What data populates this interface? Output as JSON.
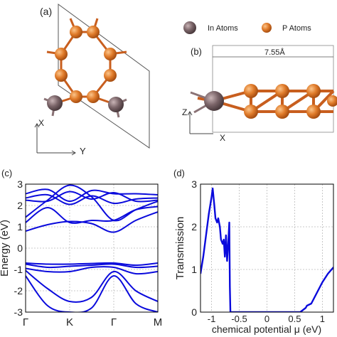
{
  "panel_labels": {
    "a": "(a)",
    "b": "(b)",
    "c": "(c)",
    "d": "(d)"
  },
  "legend": {
    "in_atoms": "In Atoms",
    "p_atoms": "P Atoms"
  },
  "colors": {
    "in_atom": "#7a6468",
    "p_atom": "#e07b2a",
    "band_line": "#0a0adc",
    "transmission_line": "#0a0adc"
  },
  "panel_a": {
    "x_axis": "X",
    "y_axis": "Y"
  },
  "panel_b": {
    "dimension": "7.55Å",
    "z_axis": "Z",
    "x_axis": "X"
  },
  "chart_data": [
    {
      "panel": "c",
      "type": "line",
      "xlabel": "",
      "ylabel": "Energy (eV)",
      "ylim": [
        -3,
        3
      ],
      "yticks": [
        -3,
        -2,
        -1,
        0,
        1,
        2,
        3
      ],
      "kpoints": [
        "Γ",
        "K",
        "Γ",
        "M"
      ],
      "kpos": [
        0,
        1,
        2,
        3
      ],
      "grid": true,
      "bands": [
        [
          [
            0,
            2.55
          ],
          [
            0.5,
            2.75
          ],
          [
            1,
            2.2
          ],
          [
            1.5,
            2.7
          ],
          [
            2,
            2.55
          ],
          [
            2.5,
            2.55
          ],
          [
            3,
            2.5
          ]
        ],
        [
          [
            0,
            2.35
          ],
          [
            0.5,
            2.5
          ],
          [
            1,
            2.05
          ],
          [
            1.5,
            2.45
          ],
          [
            2,
            2.1
          ],
          [
            2.5,
            2.3
          ],
          [
            3,
            2.35
          ]
        ],
        [
          [
            0,
            2.25
          ],
          [
            0.5,
            2.2
          ],
          [
            1,
            2.65
          ],
          [
            1.5,
            2.3
          ],
          [
            2,
            2.6
          ],
          [
            2.5,
            2.2
          ],
          [
            3,
            2.25
          ]
        ],
        [
          [
            0,
            1.45
          ],
          [
            0.5,
            2.25
          ],
          [
            1,
            2.95
          ],
          [
            1.5,
            2.4
          ],
          [
            2,
            1.3
          ],
          [
            2.5,
            1.8
          ],
          [
            3,
            2.2
          ]
        ],
        [
          [
            0,
            1.2
          ],
          [
            0.5,
            1.9
          ],
          [
            1,
            1.2
          ],
          [
            1.5,
            1.3
          ],
          [
            2,
            1.3
          ],
          [
            2.5,
            1.8
          ],
          [
            3,
            1.95
          ]
        ],
        [
          [
            0,
            0.8
          ],
          [
            0.5,
            1.1
          ],
          [
            1,
            1.25
          ],
          [
            1.5,
            1.15
          ],
          [
            2,
            0.75
          ],
          [
            2.5,
            1.3
          ],
          [
            3,
            1.7
          ]
        ],
        [
          [
            0,
            -0.7
          ],
          [
            0.5,
            -0.75
          ],
          [
            1,
            -0.75
          ],
          [
            1.5,
            -0.72
          ],
          [
            2,
            -0.7
          ],
          [
            2.5,
            -0.8
          ],
          [
            3,
            -0.7
          ]
        ],
        [
          [
            0,
            -0.75
          ],
          [
            0.5,
            -0.9
          ],
          [
            1,
            -0.85
          ],
          [
            1.5,
            -0.8
          ],
          [
            2,
            -0.75
          ],
          [
            2.5,
            -0.9
          ],
          [
            3,
            -0.85
          ]
        ],
        [
          [
            0,
            -0.95
          ],
          [
            0.5,
            -1.1
          ],
          [
            1,
            -1.1
          ],
          [
            1.5,
            -0.9
          ],
          [
            2,
            -0.9
          ],
          [
            2.5,
            -1.2
          ],
          [
            3,
            -1.1
          ]
        ],
        [
          [
            0,
            -1.05
          ],
          [
            0.5,
            -1.9
          ],
          [
            1,
            -2.5
          ],
          [
            1.5,
            -2.3
          ],
          [
            2,
            -1.1
          ],
          [
            2.5,
            -2.0
          ],
          [
            3,
            -2.5
          ]
        ],
        [
          [
            0,
            -1.3
          ],
          [
            0.5,
            -2.7
          ],
          [
            1,
            -3.0
          ],
          [
            1.5,
            -2.8
          ],
          [
            2,
            -1.3
          ],
          [
            2.5,
            -2.6
          ],
          [
            3,
            -3.0
          ]
        ]
      ]
    },
    {
      "panel": "d",
      "type": "line",
      "xlabel": "chemical potential μ (eV)",
      "ylabel": "Transmission",
      "xlim": [
        -1.2,
        1.2
      ],
      "ylim": [
        0,
        3
      ],
      "xticks": [
        -1,
        -0.5,
        0,
        0.5,
        1
      ],
      "yticks": [
        0,
        1,
        2,
        3
      ],
      "grid": true,
      "series": [
        {
          "x": [
            -1.2,
            -1.15,
            -1.1,
            -1.05,
            -1.0,
            -0.98,
            -0.95,
            -0.93,
            -0.9,
            -0.88,
            -0.85,
            -0.83,
            -0.8,
            -0.78,
            -0.76,
            -0.74,
            -0.72,
            -0.7,
            -0.68,
            -0.67,
            -0.66,
            -0.6,
            -0.5,
            0,
            0.5,
            0.6,
            0.7,
            0.72,
            0.8,
            0.9,
            1.0,
            1.1,
            1.2
          ],
          "y": [
            0.9,
            1.3,
            1.8,
            2.3,
            2.7,
            2.9,
            2.5,
            2.2,
            2.1,
            2.2,
            2.0,
            1.7,
            1.6,
            1.7,
            1.3,
            1.8,
            1.2,
            1.6,
            2.1,
            0.6,
            0,
            0,
            0,
            0,
            0,
            0,
            0.1,
            0.15,
            0.2,
            0.45,
            0.7,
            0.9,
            1.05
          ]
        }
      ]
    }
  ]
}
